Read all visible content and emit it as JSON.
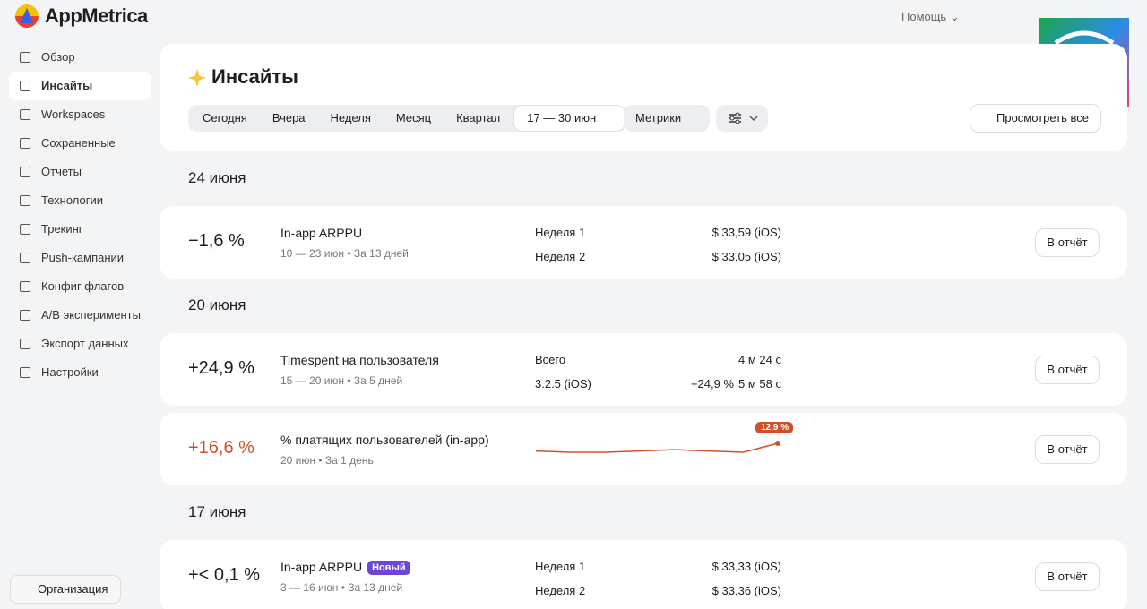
{
  "brand": "AppMetrica",
  "help": "Помощь",
  "nav": [
    "Обзор",
    "Инсайты",
    "Workspaces",
    "Сохраненные",
    "Отчеты",
    "Технологии",
    "Трекинг",
    "Push-кампании",
    "Конфиг флагов",
    "A/B эксперименты",
    "Экспорт данных",
    "Настройки"
  ],
  "nav_active": 1,
  "org": "Организация",
  "header": {
    "title": "Инсайты",
    "filters": [
      "Сегодня",
      "Вчера",
      "Неделя",
      "Месяц",
      "Квартал"
    ],
    "date_range": "17 — 30 июн",
    "metrics": "Метрики",
    "view_all": "Просмотреть все"
  },
  "groups": [
    {
      "date": "24 июня",
      "cards": [
        {
          "change": "−1,6 %",
          "metric": "In-app ARPPU",
          "period": "10 — 23 июн • За 13 дней",
          "rows": [
            {
              "label": "Неделя 1",
              "value": "$ 33,59 (iOS)"
            },
            {
              "label": "Неделя 2",
              "value": "$ 33,05 (iOS)"
            }
          ],
          "button": "В отчёт"
        }
      ]
    },
    {
      "date": "20 июня",
      "cards": [
        {
          "change": "+24,9 %",
          "metric": "Timespent на пользователя",
          "period": "15 — 20 июн • За 5 дней",
          "rows": [
            {
              "label": "Всего",
              "value": "4 м 24 с"
            },
            {
              "label": "3.2.5 (iOS)",
              "delta": "+24,9 %",
              "value": "5 м 58 с"
            }
          ],
          "button": "В отчёт"
        },
        {
          "change": "+16,6 %",
          "color": "#d1502a",
          "metric": "% платящих пользователей (in-app)",
          "period": "20 июн • За 1 день",
          "sparkline": {
            "values": [
              12.6,
              12.55,
              12.55,
              12.6,
              12.65,
              12.6,
              12.55,
              12.9
            ],
            "badge": "12,9 %"
          },
          "button": "В отчёт"
        }
      ]
    },
    {
      "date": "17 июня",
      "cards": [
        {
          "change": "+< 0,1 %",
          "metric": "In-app ARPPU",
          "badge": "Новый",
          "period": "3 — 16 июн • За 13 дней",
          "rows": [
            {
              "label": "Неделя 1",
              "value": "$ 33,33 (iOS)"
            },
            {
              "label": "Неделя 2",
              "value": "$ 33,36 (iOS)"
            }
          ],
          "button": "В отчёт"
        }
      ]
    }
  ]
}
